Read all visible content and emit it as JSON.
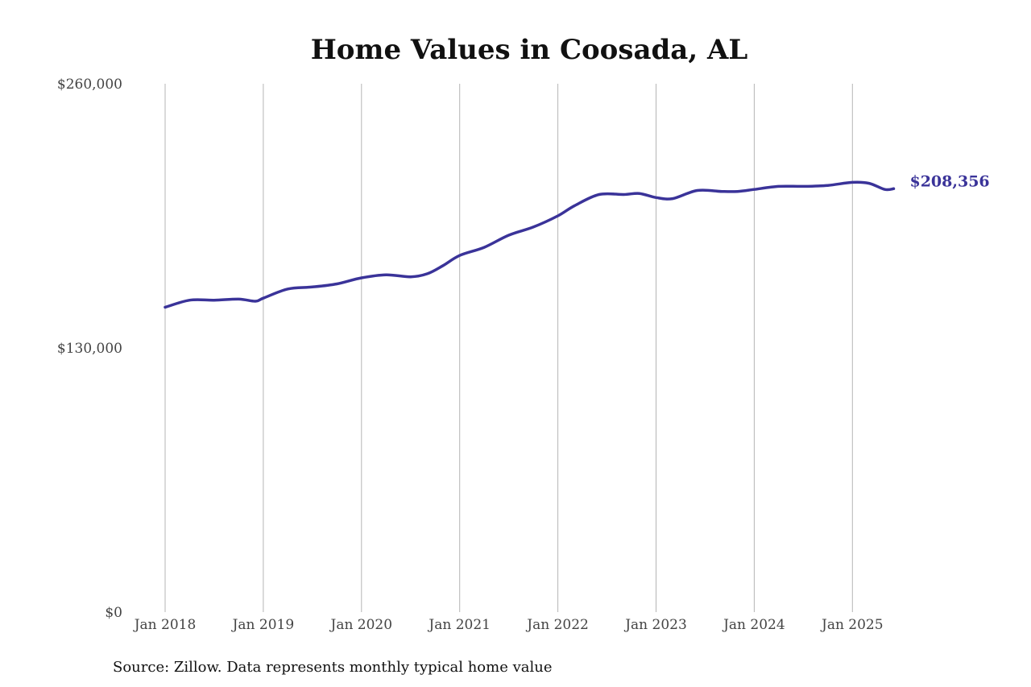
{
  "chart_data": {
    "type": "line",
    "title": "Home Values in Coosada, AL",
    "xlabel": "",
    "ylabel": "",
    "ylim": [
      0,
      260000
    ],
    "y_ticks": [
      {
        "value": 260000,
        "label": "$260,000"
      },
      {
        "value": 130000,
        "label": "$130,000"
      },
      {
        "value": 0,
        "label": "$0"
      }
    ],
    "x_ticks": [
      {
        "value": 2018,
        "label": "Jan 2018"
      },
      {
        "value": 2019,
        "label": "Jan 2019"
      },
      {
        "value": 2020,
        "label": "Jan 2020"
      },
      {
        "value": 2021,
        "label": "Jan 2021"
      },
      {
        "value": 2022,
        "label": "Jan 2022"
      },
      {
        "value": 2023,
        "label": "Jan 2023"
      },
      {
        "value": 2024,
        "label": "Jan 2024"
      },
      {
        "value": 2025,
        "label": "Jan 2025"
      }
    ],
    "grid": "vertical",
    "series": [
      {
        "color": "#3a3399",
        "x": [
          2018.0,
          2018.25,
          2018.5,
          2018.75,
          2018.92,
          2019.0,
          2019.25,
          2019.5,
          2019.75,
          2020.0,
          2020.25,
          2020.5,
          2020.67,
          2020.83,
          2021.0,
          2021.25,
          2021.5,
          2021.75,
          2022.0,
          2022.17,
          2022.42,
          2022.67,
          2022.83,
          2023.0,
          2023.17,
          2023.42,
          2023.67,
          2023.83,
          2024.0,
          2024.25,
          2024.5,
          2024.75,
          2025.0,
          2025.17,
          2025.33,
          2025.42
        ],
        "values": [
          150000,
          153500,
          153500,
          154000,
          153000,
          154500,
          159000,
          160000,
          161500,
          164500,
          166000,
          165000,
          166500,
          170500,
          175500,
          179500,
          185500,
          189500,
          195000,
          200000,
          205500,
          205500,
          206000,
          204000,
          203500,
          207500,
          207000,
          207000,
          208000,
          209500,
          209500,
          210000,
          211500,
          211000,
          208000,
          208356
        ]
      }
    ],
    "end_label": "$208,356",
    "source": "Source: Zillow. Data represents monthly typical home value"
  }
}
